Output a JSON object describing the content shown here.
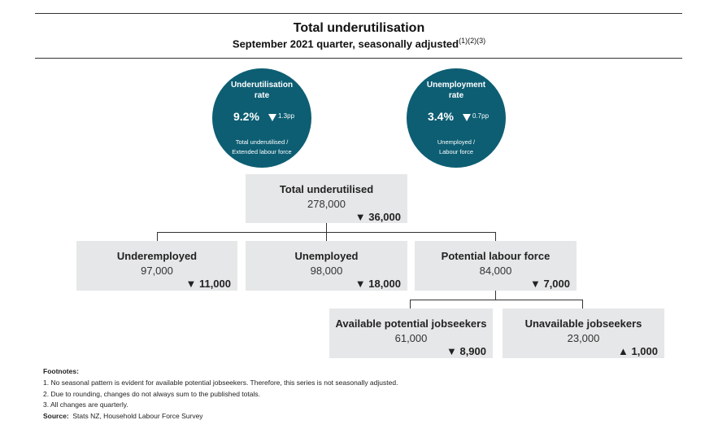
{
  "header": {
    "title": "Total underutilisation",
    "subtitle": "September 2021 quarter, seasonally adjusted",
    "subtitle_notes": "(1)(2)(3)"
  },
  "rates": [
    {
      "title_line1": "Underutilisation",
      "title_line2": "rate",
      "value": "9.2%",
      "change": "1.3pp",
      "direction": "down",
      "desc_line1": "Total underutilised /",
      "desc_line2": "Extended labour force"
    },
    {
      "title_line1": "Unemployment",
      "title_line2": "rate",
      "value": "3.4%",
      "change": "0.7pp",
      "direction": "down",
      "desc_line1": "Unemployed /",
      "desc_line2": "Labour force"
    }
  ],
  "boxes": {
    "total": {
      "title": "Total underutilised",
      "value": "278,000",
      "change": "▼ 36,000"
    },
    "underemployed": {
      "title": "Underemployed",
      "value": "97,000",
      "change": "▼ 11,000"
    },
    "unemployed": {
      "title": "Unemployed",
      "value": "98,000",
      "change": "▼ 18,000"
    },
    "potential": {
      "title": "Potential labour force",
      "value": "84,000",
      "change": "▼ 7,000"
    },
    "available": {
      "title": "Available potential jobseekers",
      "value": "61,000",
      "change": "▼ 8,900"
    },
    "unavailable": {
      "title": "Unavailable jobseekers",
      "value": "23,000",
      "change": "▲ 1,000"
    }
  },
  "footnotes": {
    "heading": "Footnotes:",
    "items": [
      "1. No seasonal pattern is evident for available potential jobseekers. Therefore, this series is not seasonally adjusted.",
      "2. Due to rounding, changes do not always sum to the published totals.",
      "3. All changes are quarterly."
    ],
    "source_label": "Source:",
    "source_text": "Stats NZ, Household Labour Force Survey"
  },
  "colors": {
    "circle": "#0d5e73",
    "box": "#e6e7e8"
  }
}
